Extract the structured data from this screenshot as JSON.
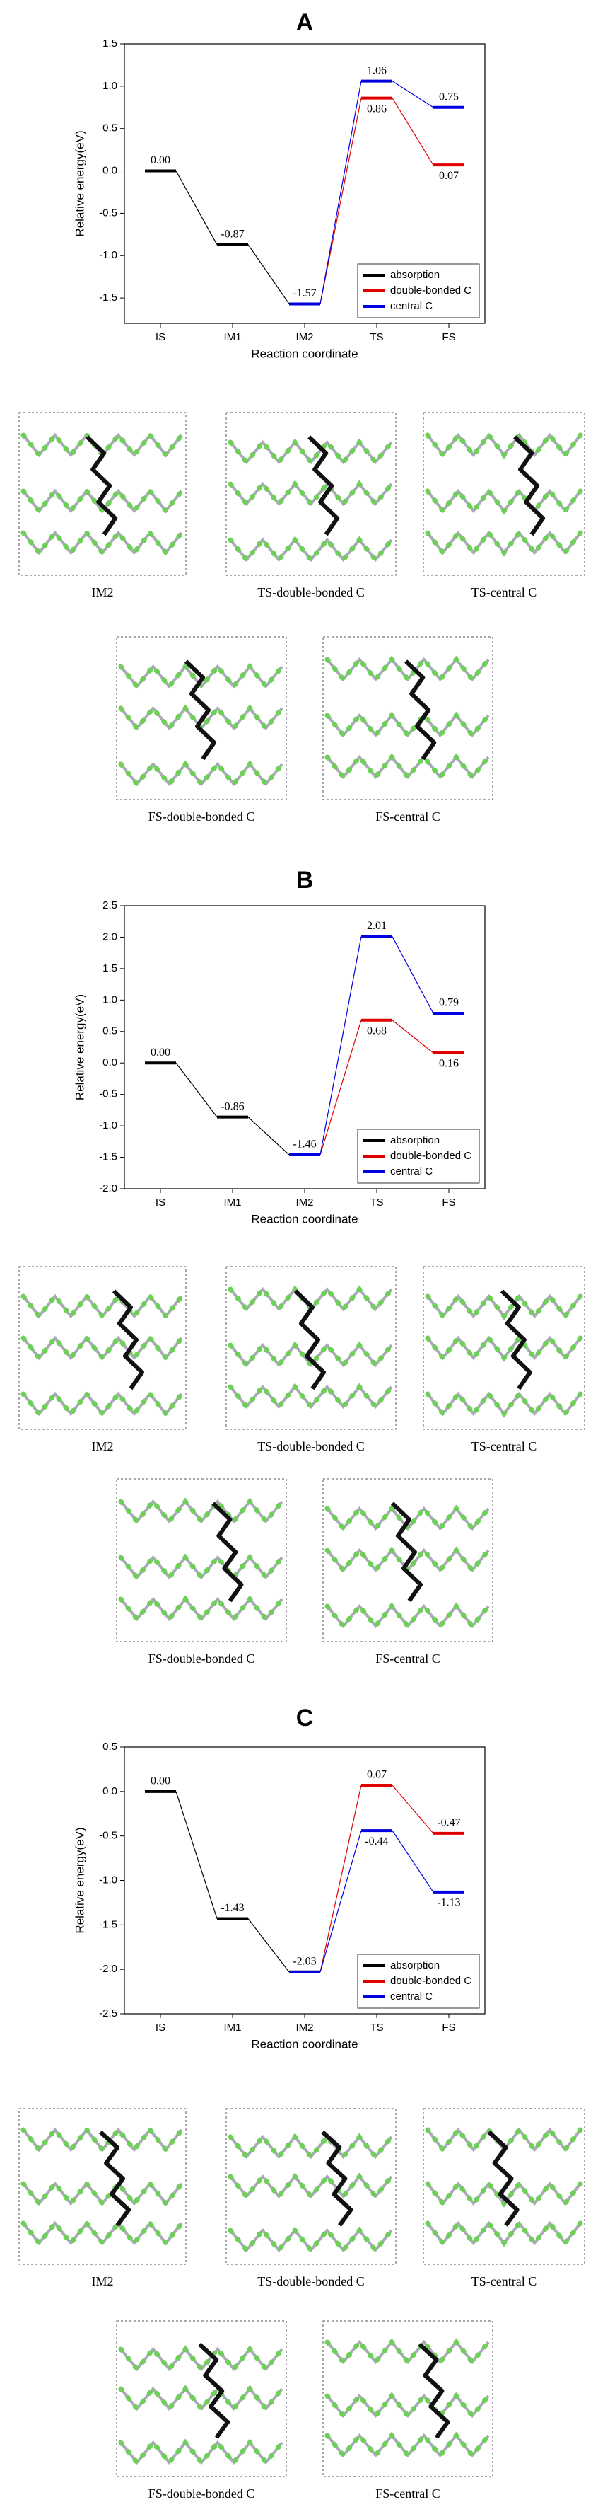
{
  "chart_data": [
    {
      "type": "line",
      "title": "A",
      "xlabel": "Reaction coordinate",
      "ylabel": "Relative energy(eV)",
      "categories": [
        "IS",
        "IM1",
        "IM2",
        "TS",
        "FS"
      ],
      "series": [
        {
          "name": "absorption",
          "color": "#000000",
          "values": [
            0.0,
            -0.87,
            -1.57,
            null,
            null
          ],
          "value_labels": [
            "0.00",
            "-0.87",
            "-1.57",
            null,
            null
          ]
        },
        {
          "name": "double-bonded C",
          "color": "#e00000",
          "values": [
            null,
            null,
            -1.57,
            0.86,
            0.07
          ],
          "value_labels": [
            null,
            null,
            null,
            "0.86",
            "0.07"
          ]
        },
        {
          "name": "central C",
          "color": "#0000e0",
          "values": [
            null,
            null,
            -1.57,
            1.06,
            0.75
          ],
          "value_labels": [
            null,
            null,
            null,
            "1.06",
            "0.75"
          ]
        }
      ],
      "ylim": [
        -1.8,
        1.5
      ],
      "yticks": [
        -1.5,
        {
          "value": -1,
          "label": "-1.0"
        },
        -0.5,
        {
          "value": 0,
          "label": "0.0"
        },
        0.5,
        {
          "value": 1,
          "label": "1.0"
        },
        1.5
      ],
      "legend": "lower right"
    },
    {
      "type": "line",
      "title": "B",
      "xlabel": "Reaction coordinate",
      "ylabel": "Relative energy(eV)",
      "categories": [
        "IS",
        "IM1",
        "IM2",
        "TS",
        "FS"
      ],
      "series": [
        {
          "name": "absorption",
          "color": "#000000",
          "values": [
            0.0,
            -0.86,
            -1.46,
            null,
            null
          ],
          "value_labels": [
            "0.00",
            "-0.86",
            "-1.46",
            null,
            null
          ]
        },
        {
          "name": "double-bonded C",
          "color": "#e00000",
          "values": [
            null,
            null,
            -1.46,
            0.68,
            0.16
          ],
          "value_labels": [
            null,
            null,
            null,
            "0.68",
            "0.16"
          ]
        },
        {
          "name": "central C",
          "color": "#0000e0",
          "values": [
            null,
            null,
            -1.46,
            2.01,
            0.79
          ],
          "value_labels": [
            null,
            null,
            null,
            "2.01",
            "0.79"
          ]
        }
      ],
      "ylim": [
        -2,
        2.5
      ],
      "yticks": [
        {
          "value": -2,
          "label": "-2.0"
        },
        -1.5,
        {
          "value": -1,
          "label": "-1.0"
        },
        -0.5,
        {
          "value": 0,
          "label": "0.0"
        },
        0.5,
        {
          "value": 1,
          "label": "1.0"
        },
        1.5,
        {
          "value": 2,
          "label": "2.0"
        },
        2.5
      ],
      "legend": "lower right"
    },
    {
      "type": "line",
      "title": "C",
      "xlabel": "Reaction coordinate",
      "ylabel": "Relative energy(eV)",
      "categories": [
        "IS",
        "IM1",
        "IM2",
        "TS",
        "FS"
      ],
      "series": [
        {
          "name": "absorption",
          "color": "#000000",
          "values": [
            0.0,
            -1.43,
            -2.03,
            null,
            null
          ],
          "value_labels": [
            "0.00",
            "-1.43",
            "-2.03",
            null,
            null
          ]
        },
        {
          "name": "double-bonded C",
          "color": "#e00000",
          "values": [
            null,
            null,
            -2.03,
            0.07,
            -0.47
          ],
          "value_labels": [
            null,
            null,
            null,
            "0.07",
            "-0.47"
          ]
        },
        {
          "name": "central C",
          "color": "#0000e0",
          "values": [
            null,
            null,
            -2.03,
            -0.44,
            -1.13
          ],
          "value_labels": [
            null,
            null,
            null,
            "-0.44",
            "-1.13"
          ]
        }
      ],
      "ylim": [
        -2.5,
        0.5
      ],
      "yticks": [
        -2.5,
        {
          "value": -2,
          "label": "-2.0"
        },
        -1.5,
        {
          "value": -1,
          "label": "-1.0"
        },
        -0.5,
        {
          "value": 0,
          "label": "0.0"
        },
        0.5
      ],
      "legend": "lower right"
    }
  ],
  "structure_captions": [
    [
      "IM2",
      "TS-double-bonded C",
      "TS-central C",
      "FS-double-bonded C",
      "FS-central C"
    ],
    [
      "IM2",
      "TS-double-bonded C",
      "TS-central C",
      "FS-double-bonded C",
      "FS-central C"
    ],
    [
      "IM2",
      "TS-double-bonded C",
      "TS-central C",
      "FS-double-bonded C",
      "FS-central C"
    ]
  ]
}
